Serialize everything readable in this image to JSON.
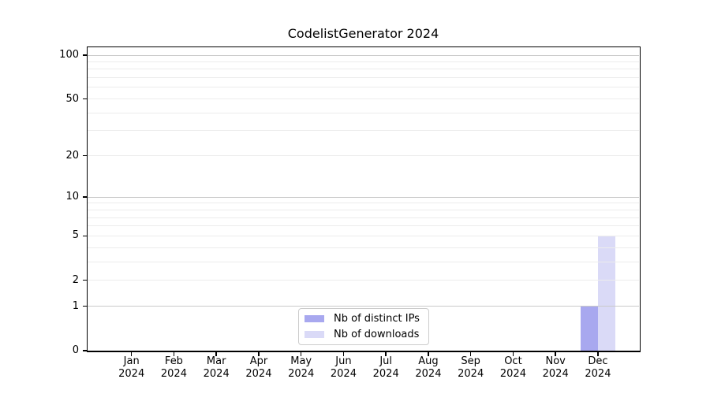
{
  "page": {
    "background": "#ffffff"
  },
  "chart_data": {
    "type": "bar",
    "title": "CodelistGenerator 2024",
    "categories": [
      "Jan",
      "Feb",
      "Mar",
      "Apr",
      "May",
      "Jun",
      "Jul",
      "Aug",
      "Sep",
      "Oct",
      "Nov",
      "Dec"
    ],
    "category_year": "2024",
    "series": [
      {
        "name": "Nb of distinct IPs",
        "color": "#a8a8ef",
        "values": [
          0,
          0,
          0,
          0,
          0,
          0,
          0,
          0,
          0,
          0,
          0,
          1
        ]
      },
      {
        "name": "Nb of downloads",
        "color": "#dadaf7",
        "values": [
          0,
          0,
          0,
          0,
          0,
          0,
          0,
          0,
          0,
          0,
          0,
          5
        ]
      }
    ],
    "xlabel": "",
    "ylabel": "",
    "yaxis": {
      "scale": "log1p",
      "range": [
        0,
        100
      ],
      "tick_values": [
        0,
        1,
        2,
        5,
        10,
        20,
        50,
        100
      ],
      "major_grid_values": [
        1,
        10,
        100
      ],
      "minor_grid_values": [
        2,
        3,
        4,
        5,
        6,
        7,
        8,
        9,
        20,
        30,
        40,
        50,
        60,
        70,
        80,
        90
      ],
      "major_grid_color": "#c9c9c9",
      "minor_grid_color": "#ececec"
    },
    "grid": true,
    "legend_position": "bottom-center",
    "spine_color": "#000000"
  }
}
